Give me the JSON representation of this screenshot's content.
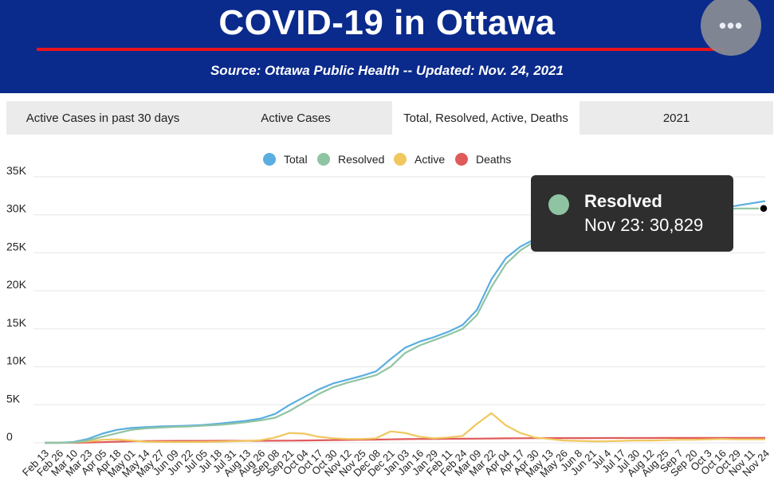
{
  "header": {
    "title": "COVID-19 in Ottawa",
    "subtitle": "Source:  Ottawa Public Health -- Updated:  Nov. 24, 2021",
    "more_icon": "more-horizontal-icon",
    "more_label": "•••"
  },
  "tabs": [
    {
      "label": "Active Cases in past 30 days",
      "active": false
    },
    {
      "label": "Active Cases",
      "active": false
    },
    {
      "label": "Total, Resolved, Active, Deaths",
      "active": true
    },
    {
      "label": "2021",
      "active": false
    }
  ],
  "tooltip": {
    "series": "Resolved",
    "text": "Nov 23: 30,829",
    "color": "#8fc4a3"
  },
  "chart_data": {
    "type": "line",
    "title": "",
    "xlabel": "",
    "ylabel": "",
    "ylim": [
      0,
      35000
    ],
    "yticks": [
      0,
      5000,
      10000,
      15000,
      20000,
      25000,
      30000,
      35000
    ],
    "ytick_labels": [
      "0",
      "5K",
      "10K",
      "15K",
      "20K",
      "25K",
      "30K",
      "35K"
    ],
    "grid": true,
    "legend_position": "top-center",
    "x": [
      "Feb 13",
      "Feb 26",
      "Mar 10",
      "Mar 23",
      "Apr 05",
      "Apr 18",
      "May 01",
      "May 14",
      "May 27",
      "Jun 09",
      "Jun 22",
      "Jul 05",
      "Jul 18",
      "Jul 31",
      "Aug 13",
      "Aug 26",
      "Sep 08",
      "Sep 21",
      "Oct 04",
      "Oct 17",
      "Oct 30",
      "Nov 12",
      "Nov 25",
      "Dec 08",
      "Dec 21",
      "Jan 03",
      "Jan 16",
      "Jan 29",
      "Feb 11",
      "Feb 24",
      "Mar 09",
      "Mar 22",
      "Apr 04",
      "Apr 17",
      "Apr 30",
      "May 13",
      "May 26",
      "Jun 8",
      "Jun 21",
      "Jul 4",
      "Jul 17",
      "Jul 30",
      "Aug 12",
      "Aug 25",
      "Sep 7",
      "Sep 20",
      "Oct 3",
      "Oct 16",
      "Oct 29",
      "Nov 11",
      "Nov 24"
    ],
    "series": [
      {
        "name": "Total",
        "color": "#5aaee0",
        "values": [
          0,
          0,
          100,
          500,
          1200,
          1700,
          1950,
          2050,
          2150,
          2200,
          2250,
          2350,
          2500,
          2700,
          2900,
          3200,
          3800,
          5000,
          6000,
          7000,
          7800,
          8300,
          8800,
          9400,
          11000,
          12500,
          13300,
          13900,
          14600,
          15500,
          17500,
          21500,
          24300,
          25800,
          26800,
          27400,
          27900,
          28100,
          28300,
          28400,
          28600,
          28800,
          29000,
          29300,
          29700,
          30100,
          30500,
          30800,
          31200,
          31500,
          31800
        ]
      },
      {
        "name": "Resolved",
        "color": "#8fc4a3",
        "values": [
          0,
          0,
          50,
          300,
          800,
          1250,
          1700,
          1900,
          2000,
          2100,
          2150,
          2250,
          2350,
          2500,
          2700,
          2950,
          3300,
          4200,
          5300,
          6400,
          7300,
          7900,
          8400,
          8900,
          10000,
          11800,
          12800,
          13500,
          14200,
          15000,
          16800,
          20500,
          23500,
          25300,
          26500,
          27200,
          27700,
          28000,
          28200,
          28300,
          28500,
          28700,
          28900,
          29200,
          29600,
          30000,
          30300,
          30600,
          30829,
          30829,
          30829
        ]
      },
      {
        "name": "Active",
        "color": "#f0c85f",
        "values": [
          0,
          0,
          50,
          200,
          400,
          450,
          300,
          150,
          120,
          100,
          100,
          120,
          150,
          200,
          250,
          350,
          700,
          1300,
          1200,
          800,
          600,
          500,
          500,
          600,
          1500,
          1300,
          800,
          600,
          700,
          900,
          2500,
          3900,
          2300,
          1300,
          700,
          500,
          300,
          250,
          200,
          200,
          250,
          300,
          300,
          350,
          400,
          400,
          450,
          500,
          450,
          450,
          450
        ]
      },
      {
        "name": "Deaths",
        "color": "#e05a5a",
        "values": [
          0,
          0,
          5,
          30,
          80,
          150,
          200,
          230,
          245,
          250,
          252,
          255,
          258,
          260,
          263,
          265,
          270,
          280,
          300,
          330,
          360,
          380,
          400,
          420,
          450,
          480,
          500,
          510,
          520,
          530,
          550,
          570,
          590,
          600,
          610,
          615,
          620,
          620,
          622,
          625,
          628,
          630,
          632,
          635,
          638,
          640,
          642,
          645,
          648,
          650,
          652
        ]
      }
    ],
    "highlight": {
      "series": "Resolved",
      "date": "Nov 23",
      "value": 30829
    }
  }
}
